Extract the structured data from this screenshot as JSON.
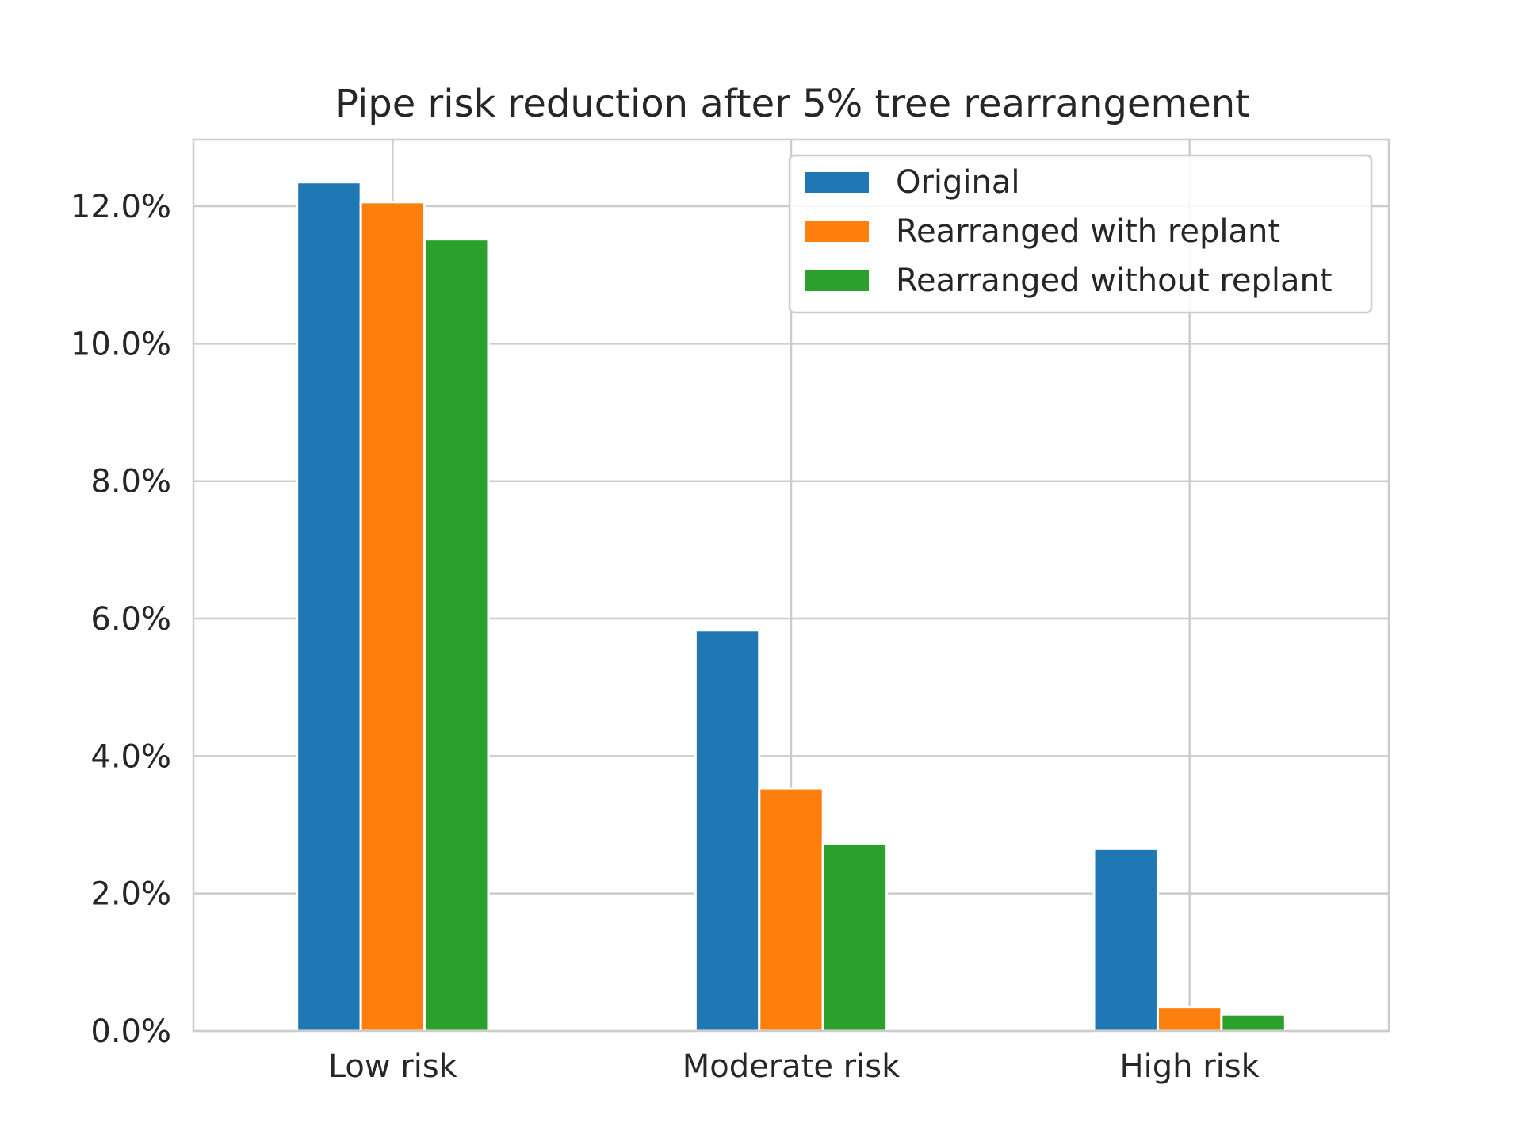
{
  "chart_data": {
    "type": "bar",
    "title": "Pipe risk reduction after 5% tree rearrangement",
    "xlabel": "",
    "ylabel": "",
    "categories": [
      "Low risk",
      "Moderate risk",
      "High risk"
    ],
    "series": [
      {
        "name": "Original",
        "color": "#1f77b4",
        "values": [
          12.35,
          5.83,
          2.65
        ]
      },
      {
        "name": "Rearranged with replant",
        "color": "#ff7f0e",
        "values": [
          12.06,
          3.53,
          0.35
        ]
      },
      {
        "name": "Rearranged without replant",
        "color": "#2ca02c",
        "values": [
          11.52,
          2.73,
          0.24
        ]
      }
    ],
    "y_ticks": [
      "0.0%",
      "2.0%",
      "4.0%",
      "6.0%",
      "8.0%",
      "10.0%",
      "12.0%"
    ],
    "y_tick_values": [
      0,
      2,
      4,
      6,
      8,
      10,
      12
    ],
    "ylim": [
      0,
      12.97
    ],
    "grid": true,
    "legend_position": "top-right"
  }
}
